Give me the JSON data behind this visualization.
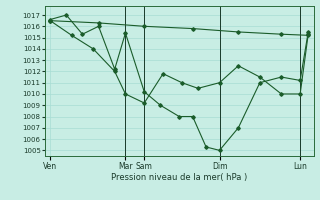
{
  "background_color": "#c8ede4",
  "grid_color": "#a8ddd4",
  "line_color": "#1a5c2a",
  "marker_color": "#1a5c2a",
  "xlabel": "Pression niveau de la mer( hPa )",
  "ylim": [
    1004.5,
    1017.8
  ],
  "yticks": [
    1005,
    1006,
    1007,
    1008,
    1009,
    1010,
    1011,
    1012,
    1013,
    1014,
    1015,
    1016,
    1017
  ],
  "xlim": [
    0,
    100
  ],
  "xtick_positions": [
    2,
    30,
    37,
    65,
    95
  ],
  "xtick_labels": [
    "Ven",
    "Mar",
    "Sam",
    "Dim",
    "Lun"
  ],
  "vlines": [
    30,
    37,
    65,
    95
  ],
  "series_flat": {
    "x": [
      2,
      20,
      37,
      55,
      72,
      88,
      98
    ],
    "y": [
      1016.5,
      1016.3,
      1016.0,
      1015.8,
      1015.5,
      1015.3,
      1015.2
    ]
  },
  "series_mid": {
    "x": [
      2,
      10,
      18,
      26,
      30,
      37,
      44,
      51,
      57,
      65,
      72,
      80,
      88,
      95,
      98
    ],
    "y": [
      1016.5,
      1015.2,
      1014.0,
      1012.0,
      1010.0,
      1009.2,
      1011.8,
      1011.0,
      1010.5,
      1011.0,
      1012.5,
      1011.5,
      1010.0,
      1010.0,
      1015.3
    ]
  },
  "series_deep": {
    "x": [
      2,
      8,
      14,
      20,
      26,
      30,
      37,
      43,
      50,
      55,
      60,
      65,
      72,
      80,
      88,
      95,
      98
    ],
    "y": [
      1016.6,
      1017.0,
      1015.3,
      1016.0,
      1012.2,
      1015.4,
      1010.2,
      1009.0,
      1008.0,
      1008.0,
      1005.3,
      1005.0,
      1007.0,
      1011.0,
      1011.5,
      1011.2,
      1015.5
    ]
  }
}
